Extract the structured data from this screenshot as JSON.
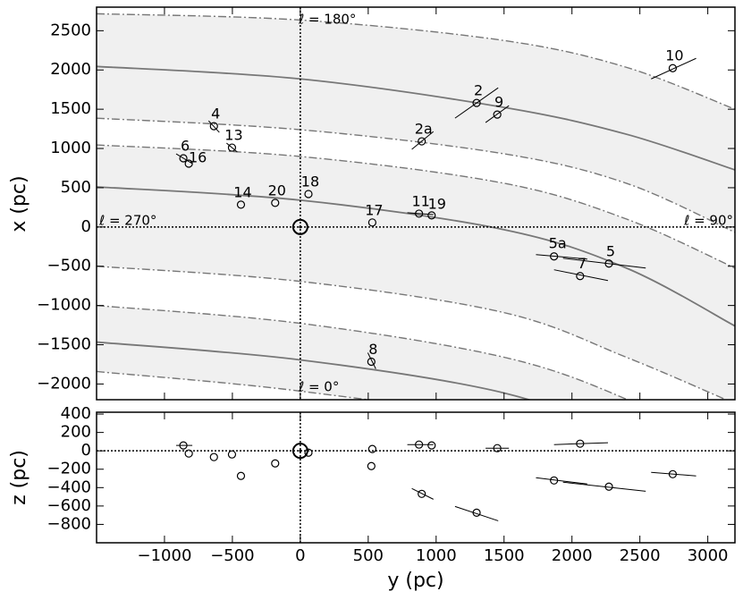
{
  "chart_data": [
    {
      "type": "scatter",
      "ylabel": "x (pc)",
      "xlim": [
        -1500,
        3200
      ],
      "ylim": [
        -2200,
        2800
      ],
      "yticks": [
        {
          "value": -2000,
          "label": "−2000"
        },
        {
          "value": -1500,
          "label": "−1500"
        },
        {
          "value": -1000,
          "label": "−1000"
        },
        {
          "value": -500,
          "label": "−500"
        },
        0,
        500,
        1000,
        1500,
        2000,
        2500
      ],
      "annotations": [
        "ℓ = 180°",
        "ℓ = 0°",
        "ℓ = 270°",
        "ℓ = 90°"
      ],
      "bands": [
        {
          "x": [
            -1500,
            0,
            1500,
            2400,
            3200
          ],
          "upper": [
            2716,
            2636,
            2375,
            2034,
            1500
          ],
          "center": [
            2045,
            1886,
            1523,
            1182,
            727
          ],
          "lower": [
            1386,
            1239,
            932,
            557,
            -68
          ]
        },
        {
          "x": [
            -1500,
            0,
            1500,
            2400,
            3200
          ],
          "upper": [
            1045,
            898,
            557,
            102,
            -523
          ],
          "center": [
            511,
            341,
            -34,
            -523,
            -1261
          ],
          "lower": [
            -500,
            -693,
            -1091,
            -1659,
            -2250
          ]
        },
        {
          "x": [
            -1500,
            0,
            1500,
            2400,
            3200
          ],
          "upper": [
            -1000,
            -1227,
            -1659,
            -2193,
            -2900
          ],
          "center": [
            -1466,
            -1693,
            -2114,
            -2700,
            -3400
          ],
          "lower": [
            -1841,
            -2091,
            -2500,
            -3200,
            -3900
          ]
        }
      ],
      "labels": [
        "10",
        "2",
        "9",
        "4",
        "13",
        "6",
        "16",
        "2a",
        "14",
        "20",
        "18",
        "17",
        "11",
        "19",
        "5a",
        "5",
        "7",
        "8"
      ],
      "x": [
        2742,
        1298,
        1450,
        -636,
        -503,
        -861,
        -821,
        894,
        -437,
        -185,
        60,
        530,
        874,
        967,
        1868,
        2272,
        2060,
        523
      ],
      "values": [
        2023,
        1580,
        1432,
        1284,
        1011,
        875,
        807,
        1091,
        284,
        307,
        420,
        57,
        170,
        148,
        -375,
        -466,
        -625,
        -1716
      ],
      "segments": [
        {
          "x": [
            2583,
            2914
          ],
          "values": [
            1886,
            2148
          ]
        },
        {
          "x": [
            1139,
            1457
          ],
          "values": [
            1386,
            1773
          ]
        },
        {
          "x": [
            1364,
            1536
          ],
          "values": [
            1330,
            1545
          ]
        },
        {
          "x": [
            -675,
            -596
          ],
          "values": [
            1352,
            1205
          ]
        },
        {
          "x": [
            -543,
            -464
          ],
          "values": [
            1068,
            955
          ]
        },
        {
          "x": [
            -914,
            -795
          ],
          "values": [
            932,
            807
          ]
        },
        {
          "x": [
            821,
            980
          ],
          "values": [
            989,
            1216
          ]
        },
        {
          "x": [
            788,
            980
          ],
          "values": [
            182,
            158
          ]
        },
        {
          "x": [
            1735,
            2113
          ],
          "values": [
            -352,
            -409
          ]
        },
        {
          "x": [
            1934,
            2543
          ],
          "values": [
            -398,
            -523
          ]
        },
        {
          "x": [
            1868,
            2265
          ],
          "values": [
            -545,
            -682
          ]
        },
        {
          "x": [
            497,
            556
          ],
          "values": [
            -1602,
            -1807
          ]
        }
      ],
      "sun": {
        "x": 0,
        "value": 0
      }
    },
    {
      "type": "scatter",
      "xlabel": "y (pc)",
      "ylabel": "z (pc)",
      "xlim": [
        -1500,
        3200
      ],
      "ylim": [
        -1000,
        420
      ],
      "xticks": [
        {
          "value": -1000,
          "label": "−1000"
        },
        {
          "value": -500,
          "label": "−500"
        },
        0,
        500,
        1000,
        1500,
        2000,
        2500,
        3000
      ],
      "yticks": [
        {
          "value": -800,
          "label": "−800"
        },
        {
          "value": -600,
          "label": "−600"
        },
        {
          "value": -400,
          "label": "−400"
        },
        {
          "value": -200,
          "label": "−200"
        },
        0,
        200,
        400
      ],
      "x": [
        2742,
        1298,
        1450,
        -636,
        -503,
        -861,
        -821,
        894,
        -437,
        -185,
        60,
        530,
        874,
        967,
        1868,
        2272,
        2060,
        523
      ],
      "values": [
        -254,
        -673,
        29,
        -68,
        -39,
        59,
        -29,
        -468,
        -273,
        -137,
        -20,
        20,
        68,
        59,
        -322,
        -390,
        78,
        -166
      ],
      "segments": [
        {
          "x": [
            2583,
            2914
          ],
          "values": [
            -234,
            -273
          ]
        },
        {
          "x": [
            1139,
            1457
          ],
          "values": [
            -605,
            -761
          ]
        },
        {
          "x": [
            1364,
            1536
          ],
          "values": [
            29,
            29
          ]
        },
        {
          "x": [
            -914,
            -795
          ],
          "values": [
            59,
            59
          ]
        },
        {
          "x": [
            821,
            980
          ],
          "values": [
            -410,
            -527
          ]
        },
        {
          "x": [
            788,
            980
          ],
          "values": [
            68,
            68
          ]
        },
        {
          "x": [
            1735,
            2113
          ],
          "values": [
            -293,
            -361
          ]
        },
        {
          "x": [
            1934,
            2543
          ],
          "values": [
            -341,
            -439
          ]
        },
        {
          "x": [
            1868,
            2265
          ],
          "values": [
            68,
            88
          ]
        }
      ],
      "sun": {
        "x": 0,
        "value": 0
      }
    }
  ]
}
